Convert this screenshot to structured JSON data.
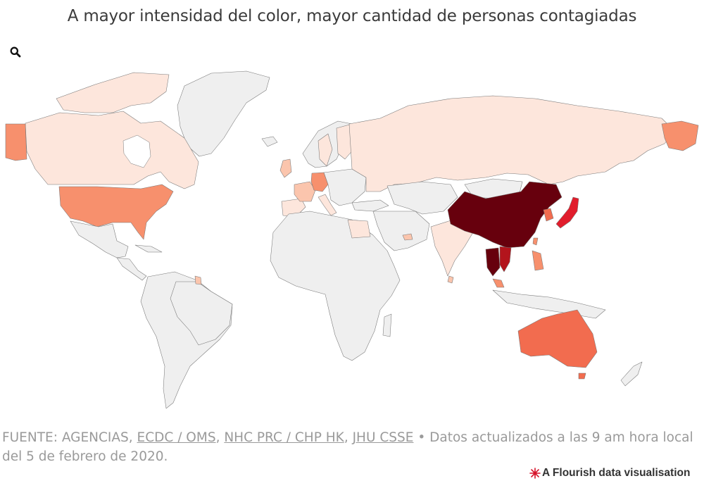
{
  "header": {
    "title": "A mayor intensidad del color, mayor cantidad de personas contagiadas"
  },
  "toolbar": {
    "search_icon": "search-icon"
  },
  "colors": {
    "no_data": "#efefef",
    "very_low": "#fde6dc",
    "low": "#fbc5ad",
    "medium": "#f7906d",
    "medium_high": "#f26c4f",
    "high": "#e11d2c",
    "very_high": "#b3141c",
    "max": "#67000d",
    "border": "#777777"
  },
  "footer": {
    "source_prefix": "FUENTE: AGENCIAS, ",
    "links": [
      "ECDC / OMS",
      "NHC PRC / CHP HK",
      "JHU CSSE"
    ],
    "separator": ", ",
    "bullet": " • ",
    "update_note": "Datos actualizados a las 9 am hora local del 5 de febrero de 2020.",
    "brand": "A Flourish data visualisation",
    "brand_icon": "flourish-logo-icon"
  }
}
